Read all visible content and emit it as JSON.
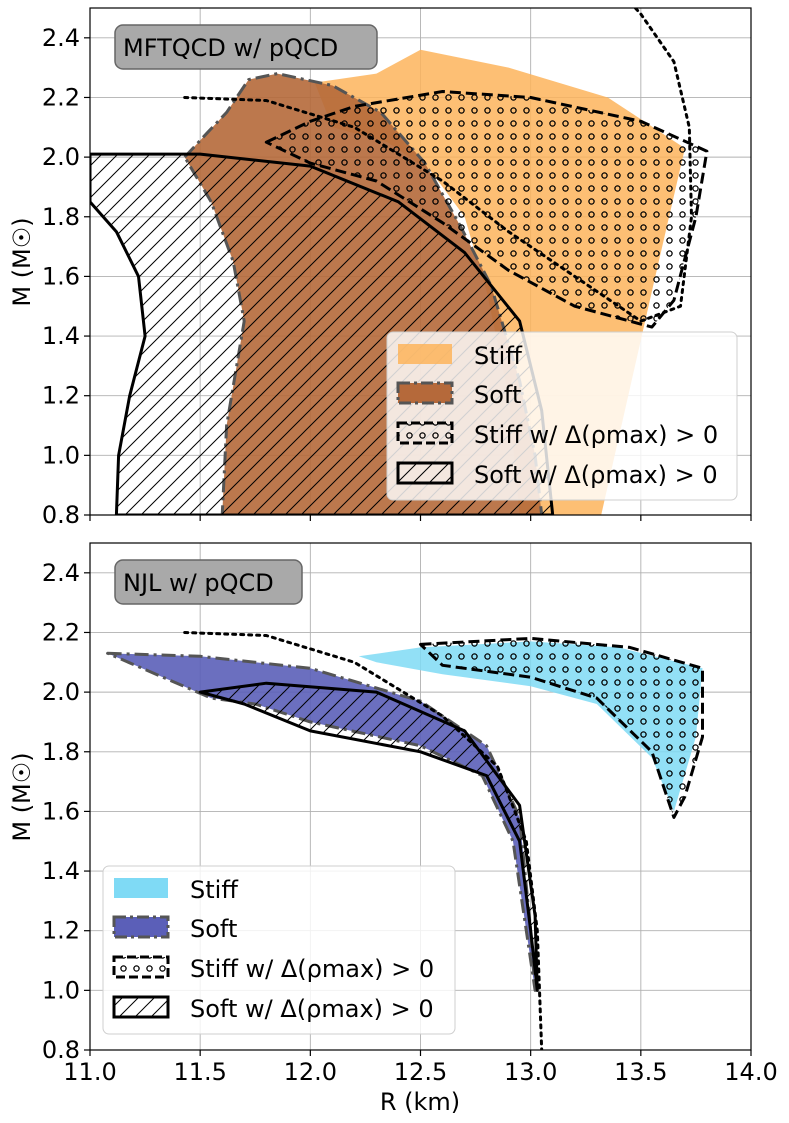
{
  "chart_data": [
    {
      "type": "area",
      "title": "MFTQCD w/ pQCD",
      "xlabel": "R (km)",
      "ylabel": "M (M☉)",
      "xlim": [
        11.0,
        14.0
      ],
      "ylim": [
        0.8,
        2.5
      ],
      "grid": true,
      "x_ticks": [
        "11.0",
        "11.5",
        "12.0",
        "12.5",
        "13.0",
        "13.5",
        "14.0"
      ],
      "y_ticks": [
        "0.8",
        "1.0",
        "1.2",
        "1.4",
        "1.6",
        "1.8",
        "2.0",
        "2.2",
        "2.4"
      ],
      "legend_position": "bottom-right",
      "colors": {
        "stiff": "#fdb45c",
        "soft": "#b5693a",
        "soft_edge": "#555555"
      },
      "legend": [
        {
          "label": "Stiff",
          "math": ""
        },
        {
          "label": "Soft",
          "math": ""
        },
        {
          "label": "Stiff w/",
          "math": "Δ(ρmax) > 0"
        },
        {
          "label": "Soft w/",
          "math": "Δ(ρmax) > 0"
        }
      ],
      "series": [
        {
          "name": "Stiff",
          "style": "fill",
          "points": [
            [
              12.02,
              2.25
            ],
            [
              12.3,
              2.28
            ],
            [
              12.5,
              2.36
            ],
            [
              12.9,
              2.3
            ],
            [
              13.35,
              2.2
            ],
            [
              13.7,
              2.03
            ],
            [
              13.55,
              1.55
            ],
            [
              13.32,
              0.8
            ],
            [
              12.95,
              0.8
            ],
            [
              12.9,
              1.2
            ],
            [
              12.8,
              1.55
            ],
            [
              12.7,
              1.8
            ],
            [
              12.55,
              1.95
            ],
            [
              12.35,
              2.05
            ],
            [
              12.1,
              2.1
            ]
          ]
        },
        {
          "name": "Soft",
          "style": "fill",
          "points": [
            [
              11.43,
              2.0
            ],
            [
              11.53,
              2.08
            ],
            [
              11.62,
              2.15
            ],
            [
              11.72,
              2.26
            ],
            [
              11.85,
              2.28
            ],
            [
              12.1,
              2.24
            ],
            [
              12.32,
              2.15
            ],
            [
              12.52,
              1.98
            ],
            [
              12.68,
              1.77
            ],
            [
              12.82,
              1.57
            ],
            [
              12.95,
              1.25
            ],
            [
              13.02,
              1.0
            ],
            [
              13.05,
              0.8
            ],
            [
              11.6,
              0.8
            ],
            [
              11.62,
              1.1
            ],
            [
              11.7,
              1.45
            ],
            [
              11.65,
              1.65
            ],
            [
              11.55,
              1.85
            ]
          ]
        },
        {
          "name": "Stiff w/ Δ(ρmax) > 0",
          "style": "dotted-fill",
          "points": [
            [
              11.8,
              2.05
            ],
            [
              12.0,
              2.12
            ],
            [
              12.2,
              2.17
            ],
            [
              12.6,
              2.22
            ],
            [
              13.0,
              2.2
            ],
            [
              13.5,
              2.12
            ],
            [
              13.8,
              2.02
            ],
            [
              13.75,
              1.8
            ],
            [
              13.65,
              1.52
            ],
            [
              13.55,
              1.43
            ],
            [
              13.2,
              1.5
            ],
            [
              12.9,
              1.62
            ],
            [
              12.6,
              1.78
            ],
            [
              12.3,
              1.92
            ],
            [
              12.0,
              1.98
            ]
          ]
        },
        {
          "name": "Soft w/ Δ(ρmax) > 0",
          "style": "hatched-fill",
          "points": [
            [
              11.0,
              2.01
            ],
            [
              11.5,
              2.01
            ],
            [
              12.0,
              1.97
            ],
            [
              12.4,
              1.85
            ],
            [
              12.7,
              1.68
            ],
            [
              12.95,
              1.45
            ],
            [
              13.05,
              1.15
            ],
            [
              13.1,
              0.8
            ],
            [
              11.12,
              0.8
            ],
            [
              11.13,
              1.0
            ],
            [
              11.18,
              1.2
            ],
            [
              11.25,
              1.4
            ],
            [
              11.22,
              1.6
            ],
            [
              11.12,
              1.75
            ],
            [
              11.0,
              1.85
            ]
          ]
        },
        {
          "name": "dotted envelope",
          "style": "dotted-line",
          "points": [
            [
              11.43,
              2.2
            ],
            [
              11.8,
              2.19
            ],
            [
              12.2,
              2.1
            ],
            [
              12.6,
              1.92
            ],
            [
              12.9,
              1.75
            ],
            [
              13.2,
              1.6
            ],
            [
              13.5,
              1.45
            ],
            [
              13.68,
              1.5
            ],
            [
              13.73,
              1.8
            ],
            [
              13.72,
              2.1
            ],
            [
              13.65,
              2.32
            ],
            [
              13.5,
              2.48
            ],
            [
              13.45,
              2.52
            ]
          ]
        }
      ]
    },
    {
      "type": "area",
      "title": "NJL w/ pQCD",
      "xlabel": "R (km)",
      "ylabel": "M (M☉)",
      "xlim": [
        11.0,
        14.0
      ],
      "ylim": [
        0.8,
        2.5
      ],
      "grid": true,
      "x_ticks": [
        "11.0",
        "11.5",
        "12.0",
        "12.5",
        "13.0",
        "13.5",
        "14.0"
      ],
      "y_ticks": [
        "0.8",
        "1.0",
        "1.2",
        "1.4",
        "1.6",
        "1.8",
        "2.0",
        "2.2",
        "2.4"
      ],
      "legend_position": "bottom-left",
      "colors": {
        "stiff": "#7fdaf5",
        "soft": "#5b5fb8",
        "soft_edge": "#555555"
      },
      "legend": [
        {
          "label": "Stiff",
          "math": ""
        },
        {
          "label": "Soft",
          "math": ""
        },
        {
          "label": "Stiff w/",
          "math": "Δ(ρmax) > 0"
        },
        {
          "label": "Soft w/",
          "math": "Δ(ρmax) > 0"
        }
      ],
      "series": [
        {
          "name": "Stiff",
          "style": "fill",
          "points": [
            [
              12.22,
              2.12
            ],
            [
              12.5,
              2.15
            ],
            [
              13.0,
              2.17
            ],
            [
              13.4,
              2.15
            ],
            [
              13.78,
              2.08
            ],
            [
              13.75,
              1.85
            ],
            [
              13.65,
              1.6
            ],
            [
              13.55,
              1.78
            ],
            [
              13.3,
              1.96
            ],
            [
              13.0,
              2.02
            ],
            [
              12.6,
              2.06
            ],
            [
              12.3,
              2.1
            ]
          ]
        },
        {
          "name": "Soft",
          "style": "fill",
          "points": [
            [
              11.08,
              2.13
            ],
            [
              11.5,
              2.12
            ],
            [
              12.0,
              2.08
            ],
            [
              12.5,
              1.97
            ],
            [
              12.8,
              1.82
            ],
            [
              12.95,
              1.58
            ],
            [
              13.0,
              1.2
            ],
            [
              13.02,
              1.0
            ],
            [
              12.98,
              1.2
            ],
            [
              12.92,
              1.5
            ],
            [
              12.78,
              1.72
            ],
            [
              12.5,
              1.82
            ],
            [
              12.0,
              1.9
            ],
            [
              11.75,
              1.96
            ],
            [
              11.55,
              1.98
            ]
          ]
        },
        {
          "name": "Stiff w/ Δ(ρmax) > 0",
          "style": "dotted-fill",
          "points": [
            [
              12.5,
              2.16
            ],
            [
              13.0,
              2.18
            ],
            [
              13.45,
              2.15
            ],
            [
              13.78,
              2.08
            ],
            [
              13.78,
              1.85
            ],
            [
              13.7,
              1.65
            ],
            [
              13.65,
              1.58
            ],
            [
              13.55,
              1.8
            ],
            [
              13.3,
              1.98
            ],
            [
              13.0,
              2.05
            ],
            [
              12.6,
              2.09
            ]
          ]
        },
        {
          "name": "Soft w/ Δ(ρmax) > 0",
          "style": "hatched-fill",
          "points": [
            [
              11.5,
              2.0
            ],
            [
              11.8,
              2.03
            ],
            [
              12.3,
              2.0
            ],
            [
              12.7,
              1.87
            ],
            [
              12.95,
              1.62
            ],
            [
              13.02,
              1.25
            ],
            [
              13.03,
              1.0
            ],
            [
              13.0,
              1.2
            ],
            [
              12.95,
              1.5
            ],
            [
              12.8,
              1.72
            ],
            [
              12.5,
              1.8
            ],
            [
              12.0,
              1.87
            ],
            [
              11.7,
              1.96
            ]
          ]
        },
        {
          "name": "dotted envelope",
          "style": "dotted-line",
          "points": [
            [
              11.43,
              2.2
            ],
            [
              11.8,
              2.19
            ],
            [
              12.2,
              2.1
            ],
            [
              12.6,
              1.92
            ],
            [
              12.85,
              1.75
            ],
            [
              12.98,
              1.5
            ],
            [
              13.03,
              1.2
            ],
            [
              13.05,
              0.8
            ]
          ]
        }
      ]
    }
  ]
}
